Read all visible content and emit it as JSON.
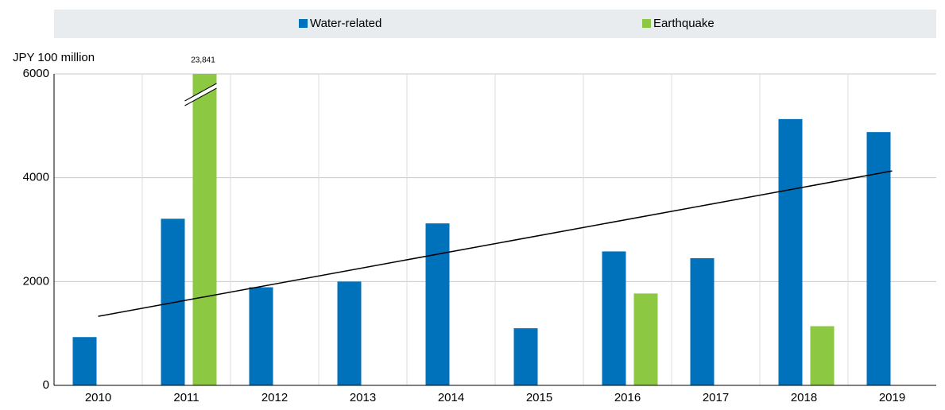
{
  "chart_data": {
    "type": "bar",
    "y_label": "JPY 100 million",
    "categories": [
      "2010",
      "2011",
      "2012",
      "2013",
      "2014",
      "2015",
      "2016",
      "2017",
      "2018",
      "2019"
    ],
    "series": [
      {
        "name": "Water-related",
        "color": "#0072bc",
        "values": [
          930,
          3210,
          1890,
          2000,
          3120,
          1100,
          2580,
          2450,
          5130,
          4880
        ]
      },
      {
        "name": "Earthquake",
        "color": "#8cc841",
        "values": [
          null,
          23841,
          null,
          null,
          null,
          null,
          1770,
          null,
          1140,
          null
        ],
        "value_labels": [
          null,
          "23,841",
          null,
          null,
          null,
          null,
          null,
          null,
          null,
          null
        ]
      }
    ],
    "trend": {
      "color": "#000000",
      "values": [
        1330,
        4130
      ]
    },
    "ylim": [
      0,
      6000
    ],
    "yticks": [
      0,
      2000,
      4000,
      6000
    ],
    "grid": true,
    "legend": "top"
  }
}
